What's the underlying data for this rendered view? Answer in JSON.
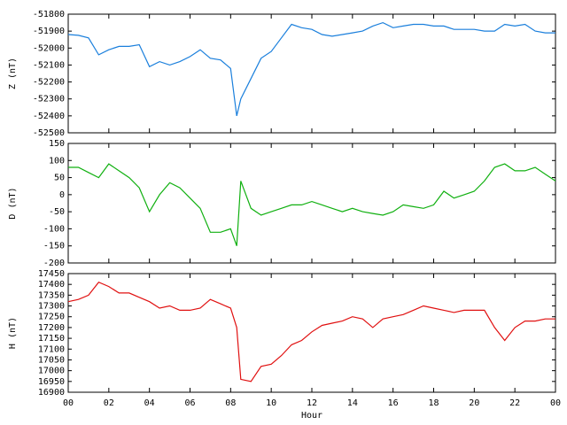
{
  "chart_data": [
    {
      "type": "line",
      "ylabel": "Z (nT)",
      "color": "#1a7fdc",
      "xlim": [
        0,
        24
      ],
      "ylim": [
        -52500,
        -51800
      ],
      "yticks": [
        -52500,
        -52400,
        -52300,
        -52200,
        -52100,
        -52000,
        -51900,
        -51800
      ],
      "x": [
        0,
        0.5,
        1,
        1.5,
        2,
        2.5,
        3,
        3.5,
        4,
        4.5,
        5,
        5.5,
        6,
        6.5,
        7,
        7.5,
        8,
        8.3,
        8.5,
        9,
        9.5,
        10,
        10.5,
        11,
        11.5,
        12,
        12.5,
        13,
        13.5,
        14,
        14.5,
        15,
        15.5,
        16,
        16.5,
        17,
        17.5,
        18,
        18.5,
        19,
        19.5,
        20,
        20.5,
        21,
        21.5,
        22,
        22.5,
        23,
        23.5,
        24
      ],
      "values": [
        -51920,
        -51925,
        -51940,
        -52040,
        -52010,
        -51990,
        -51990,
        -51980,
        -52110,
        -52080,
        -52100,
        -52080,
        -52050,
        -52010,
        -52060,
        -52070,
        -52120,
        -52400,
        -52300,
        -52180,
        -52060,
        -52020,
        -51940,
        -51860,
        -51880,
        -51890,
        -51920,
        -51930,
        -51920,
        -51910,
        -51900,
        -51870,
        -51850,
        -51880,
        -51870,
        -51860,
        -51860,
        -51870,
        -51870,
        -51890,
        -51890,
        -51890,
        -51900,
        -51900,
        -51860,
        -51870,
        -51860,
        -51900,
        -51910,
        -51910
      ]
    },
    {
      "type": "line",
      "ylabel": "D (nT)",
      "color": "#10b010",
      "xlim": [
        0,
        24
      ],
      "ylim": [
        -200,
        150
      ],
      "yticks": [
        -200,
        -150,
        -100,
        -50,
        0,
        50,
        100,
        150
      ],
      "x": [
        0,
        0.5,
        1,
        1.5,
        2,
        2.5,
        3,
        3.5,
        4,
        4.5,
        5,
        5.5,
        6,
        6.5,
        7,
        7.5,
        8,
        8.3,
        8.5,
        9,
        9.5,
        10,
        10.5,
        11,
        11.5,
        12,
        12.5,
        13,
        13.5,
        14,
        14.5,
        15,
        15.5,
        16,
        16.5,
        17,
        17.5,
        18,
        18.5,
        19,
        19.5,
        20,
        20.5,
        21,
        21.5,
        22,
        22.5,
        23,
        23.5,
        24
      ],
      "values": [
        80,
        80,
        65,
        50,
        90,
        70,
        50,
        20,
        -50,
        0,
        35,
        20,
        -10,
        -40,
        -110,
        -110,
        -100,
        -150,
        40,
        -40,
        -60,
        -50,
        -40,
        -30,
        -30,
        -20,
        -30,
        -40,
        -50,
        -40,
        -50,
        -55,
        -60,
        -50,
        -30,
        -35,
        -40,
        -30,
        10,
        -10,
        0,
        10,
        40,
        80,
        90,
        70,
        70,
        80,
        60,
        40
      ]
    },
    {
      "type": "line",
      "ylabel": "H (nT)",
      "xlabel": "Hour",
      "color": "#e01010",
      "xlim": [
        0,
        24
      ],
      "ylim": [
        16900,
        17450
      ],
      "yticks": [
        16900,
        16950,
        17000,
        17050,
        17100,
        17150,
        17200,
        17250,
        17300,
        17350,
        17400,
        17450
      ],
      "xticks": [
        {
          "value": 0,
          "label": "00"
        },
        {
          "value": 2,
          "label": "02"
        },
        {
          "value": 4,
          "label": "04"
        },
        {
          "value": 6,
          "label": "06"
        },
        {
          "value": 8,
          "label": "08"
        },
        10,
        12,
        14,
        16,
        18,
        20,
        22,
        {
          "value": 24,
          "label": "00"
        }
      ],
      "x": [
        0,
        0.5,
        1,
        1.5,
        2,
        2.5,
        3,
        3.5,
        4,
        4.5,
        5,
        5.5,
        6,
        6.5,
        7,
        7.5,
        8,
        8.3,
        8.5,
        9,
        9.5,
        10,
        10.5,
        11,
        11.5,
        12,
        12.5,
        13,
        13.5,
        14,
        14.5,
        15,
        15.5,
        16,
        16.5,
        17,
        17.5,
        18,
        18.5,
        19,
        19.5,
        20,
        20.5,
        21,
        21.5,
        22,
        22.5,
        23,
        23.5,
        24
      ],
      "values": [
        17320,
        17330,
        17350,
        17410,
        17390,
        17360,
        17360,
        17340,
        17320,
        17290,
        17300,
        17280,
        17280,
        17290,
        17330,
        17310,
        17290,
        17200,
        16960,
        16950,
        17020,
        17030,
        17070,
        17120,
        17140,
        17180,
        17210,
        17220,
        17230,
        17250,
        17240,
        17200,
        17240,
        17250,
        17260,
        17280,
        17300,
        17290,
        17280,
        17270,
        17280,
        17280,
        17280,
        17200,
        17140,
        17200,
        17230,
        17230,
        17240,
        17240
      ]
    }
  ]
}
